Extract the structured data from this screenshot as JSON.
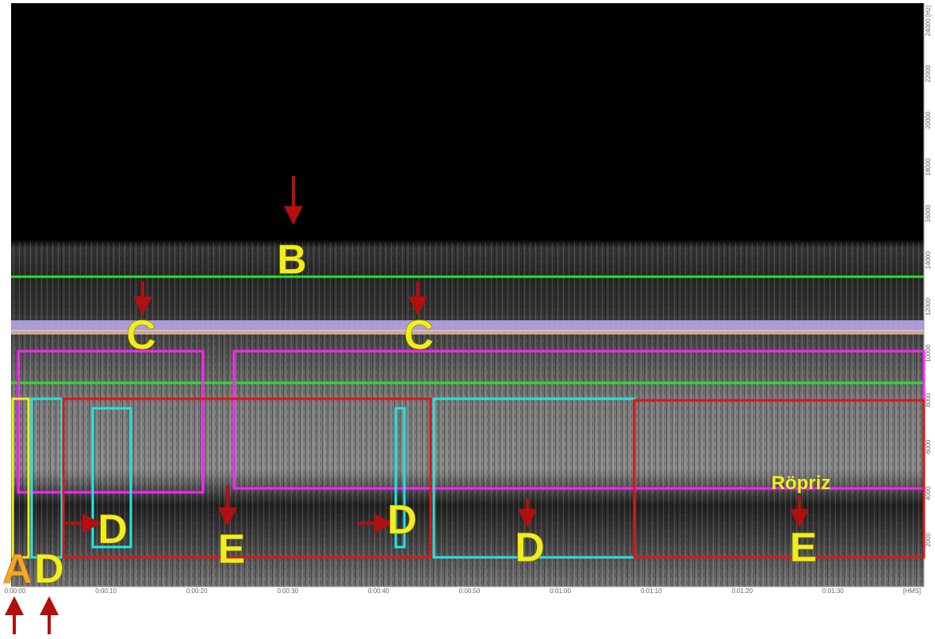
{
  "frequency_axis": {
    "ticks": [
      "2000",
      "4000",
      "6000",
      "8000",
      "10000",
      "12000",
      "14000",
      "16000",
      "18000",
      "20000",
      "22000",
      "24000 [Hz]"
    ]
  },
  "time_axis": {
    "ticks": [
      "0:00:00",
      "0:00:10",
      "0:00:20",
      "0:00:30",
      "0:00:40",
      "0:00:50",
      "0:01:00",
      "0:01:10",
      "0:01:20",
      "0:01:30",
      "[HMS]"
    ]
  },
  "annotations": [
    {
      "label": "A"
    },
    {
      "label": "B"
    },
    {
      "label": "C"
    },
    {
      "label": "C"
    },
    {
      "label": "D"
    },
    {
      "label": "D"
    },
    {
      "label": "D"
    },
    {
      "label": "D"
    },
    {
      "label": "E"
    },
    {
      "label": "E"
    },
    {
      "label": "Röpriz"
    }
  ]
}
